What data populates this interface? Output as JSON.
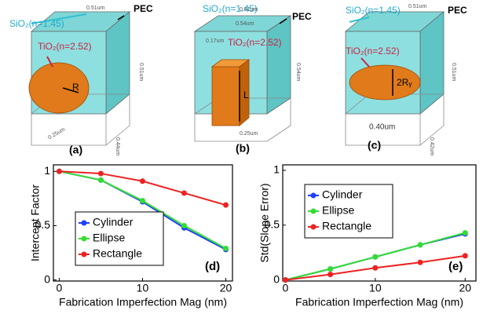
{
  "diagrams": [
    {
      "panel": "(a)",
      "labels": [
        "SiO₂(n=1.45)",
        "PEC",
        "TiO₂(n=2.52)",
        "R",
        "0.51um",
        "0.51um",
        "0.44um",
        "0.25um"
      ]
    },
    {
      "panel": "(b)",
      "labels": [
        "SiO₂(n=1.45)",
        "PEC",
        "TiO₂(n=2.52)",
        "L",
        "0.51um",
        "0.54um",
        "0.54um",
        "0.17um",
        "0.25um"
      ]
    },
    {
      "panel": "(c)",
      "labels": [
        "SiO₂(n=1.45)",
        "PEC",
        "TiO₂(n=2.52)",
        "2Rᵧ",
        "0.51um",
        "0.51um",
        "0.42um",
        "0.40um"
      ]
    }
  ],
  "chart_data": [
    {
      "type": "line",
      "panel_label": "(d)",
      "x_label": "Fabrication Imperfection Mag (nm)",
      "y_label": "Intercept Factor",
      "x": [
        0,
        5,
        10,
        15,
        20
      ],
      "xlim": [
        -0.7,
        20.8
      ],
      "xticks": [
        0,
        10,
        20
      ],
      "ylim": [
        -0.01,
        1.06
      ],
      "yticks": [
        0,
        0.5,
        1
      ],
      "legend": "lower left",
      "series": [
        {
          "name": "Cylinder",
          "color": "#1f3fff",
          "values": [
            1,
            0.92,
            0.72,
            0.48,
            0.28
          ]
        },
        {
          "name": "Ellipse",
          "color": "#33dd33",
          "values": [
            1,
            0.92,
            0.73,
            0.5,
            0.29
          ]
        },
        {
          "name": "Rectangle",
          "color": "#ee2222",
          "values": [
            1,
            0.98,
            0.91,
            0.8,
            0.69
          ]
        }
      ]
    },
    {
      "type": "line",
      "panel_label": "(e)",
      "x_label": "Fabrication Imperfection Mag (nm)",
      "y_label": "Std(Slope Error)",
      "x": [
        0,
        5,
        10,
        15,
        20
      ],
      "xlim": [
        -0.3,
        21.2
      ],
      "xticks": [
        0,
        10,
        20
      ],
      "ylim": [
        -0.01,
        1.05
      ],
      "yticks": [
        0,
        0.5,
        1
      ],
      "legend": "upper left",
      "series": [
        {
          "name": "Cylinder",
          "color": "#1f3fff",
          "values": [
            0,
            0.1,
            0.21,
            0.32,
            0.42
          ]
        },
        {
          "name": "Ellipse",
          "color": "#33dd33",
          "values": [
            0,
            0.1,
            0.21,
            0.32,
            0.43
          ]
        },
        {
          "name": "Rectangle",
          "color": "#ee2222",
          "values": [
            0,
            0.05,
            0.11,
            0.16,
            0.22
          ]
        }
      ]
    }
  ]
}
